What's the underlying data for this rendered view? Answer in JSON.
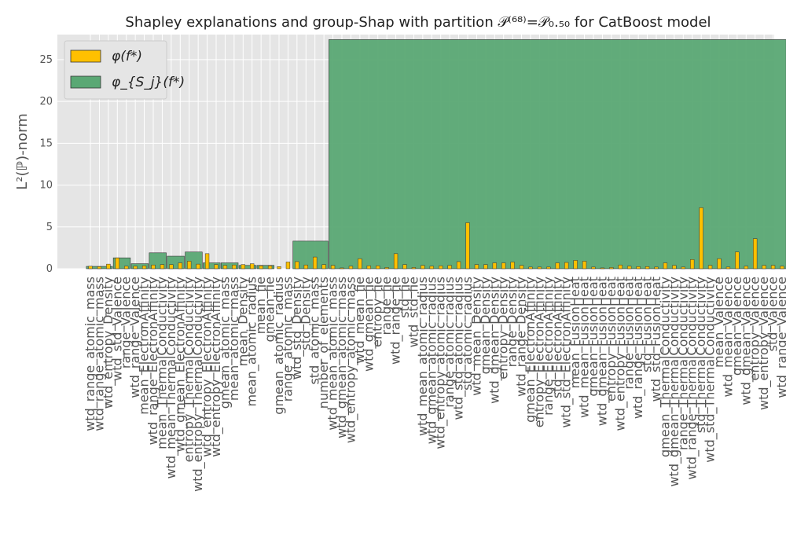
{
  "chart_data": {
    "type": "bar",
    "title": "Shapley explanations and group-Shap with partition 𝒫⁽⁶⁸⁾=𝒫₀.₅₀ for CatBoost model",
    "xlabel": "",
    "ylabel": "L²(ℙ)-norm",
    "ylim": [
      0,
      28
    ],
    "yticks": [
      0,
      5,
      10,
      15,
      20,
      25
    ],
    "grid": true,
    "legend_position": "top-left",
    "colors": {
      "individual": "#ffc000",
      "group": "#5aa874",
      "background": "#e5e5e5",
      "grid": "#ffffff"
    },
    "categories": [
      "wtd_range_atomic_mass",
      "wtd_range_atomic_mass",
      "wtd_entropy_Density",
      "wtd_std_Valence",
      "range_Valence",
      "wtd_range_Valence",
      "mean_ElectronAffinity",
      "wtd_range_ElectronAffinity",
      "mean_ThermalConductivity",
      "wtd_mean_ThermalConductivity",
      "wtd_gmean_ElectronAffinity",
      "entropy_ThermalConductivity",
      "wtd_entropy_ThermalConductivity",
      "wtd_entropy_ElectronAffinity",
      "wtd_entropy_ElectronAffinity",
      "gmean_atomic_mass",
      "mean_atomic_mass",
      "mean_Density",
      "mean_atomic_radius",
      "mean_fie",
      "gmean_fie",
      "gmean_atomic_radius",
      "range_atomic_mass",
      "wtd_std_Density",
      "std_Density",
      "std_atomic_mass",
      "number_of_elements",
      "wtd_mean_atomic_mass",
      "wtd_gmean_atomic_mass",
      "wtd_entropy_atomic_mass",
      "wtd_mean_fie",
      "wtd_gmean_fie",
      "entropy_fie",
      "range_fie",
      "wtd_range_fie",
      "std_fie",
      "wtd_std_fie",
      "wtd_mean_atomic_radius",
      "wtd_gmean_atomic_radius",
      "wtd_entropy_atomic_radius",
      "range_atomic_radius",
      "wtd_std_atomic_radius",
      "std_atomic_radius",
      "wtd_mean_Density",
      "gmean_Density",
      "wtd_gmean_Density",
      "entropy_Density",
      "range_Density",
      "wtd_range_Density",
      "gmean_ElectronAffinity",
      "entropy_ElectronAffinity",
      "range_ElectronAffinity",
      "std_ElectronAffinity",
      "wtd_std_ElectronAffinity",
      "mean_FusionHeat",
      "wtd_mean_FusionHeat",
      "gmean_FusionHeat",
      "wtd_gmean_FusionHeat",
      "entropy_FusionHeat",
      "wtd_entropy_FusionHeat",
      "range_FusionHeat",
      "wtd_range_FusionHeat",
      "std_FusionHeat",
      "wtd_std_FusionHeat",
      "gmean_ThermalConductivity",
      "wtd_gmean_ThermalConductivity",
      "range_ThermalConductivity",
      "wtd_range_ThermalConductivity",
      "std_ThermalConductivity",
      "wtd_std_ThermalConductivity",
      "mean_Valence",
      "wtd_mean_Valence",
      "gmean_Valence",
      "wtd_gmean_Valence",
      "entropy_Valence",
      "wtd_entropy_Valence",
      "std_Valence",
      "wtd_range_Valence"
    ],
    "series": [
      {
        "name": "φ(f*)",
        "values": [
          0.3,
          0.25,
          0.55,
          1.3,
          0.3,
          0.3,
          0.35,
          0.45,
          0.5,
          0.5,
          0.7,
          0.9,
          0.55,
          1.8,
          0.5,
          0.4,
          0.45,
          0.5,
          0.6,
          0.35,
          0.35,
          0.25,
          0.8,
          0.85,
          0.45,
          1.4,
          0.5,
          0.4,
          0.1,
          0.3,
          1.2,
          0.35,
          0.35,
          0.15,
          1.8,
          0.5,
          0.15,
          0.4,
          0.3,
          0.35,
          0.4,
          0.85,
          5.5,
          0.5,
          0.5,
          0.7,
          0.7,
          0.8,
          0.4,
          0.2,
          0.2,
          0.2,
          0.7,
          0.75,
          1.0,
          0.9,
          0.2,
          0.1,
          0.15,
          0.45,
          0.3,
          0.25,
          0.25,
          0.2,
          0.7,
          0.4,
          0.2,
          1.1,
          7.3,
          0.4,
          1.2,
          0.2,
          2.0,
          0.3,
          3.6,
          0.4,
          0.4,
          0.3
        ]
      },
      {
        "name": "φ_{S_j}(f*)",
        "groups": [
          {
            "start": 0,
            "end": 2,
            "value": 0.28
          },
          {
            "start": 3,
            "end": 4,
            "value": 1.3
          },
          {
            "start": 5,
            "end": 6,
            "value": 0.6
          },
          {
            "start": 7,
            "end": 8,
            "value": 1.9
          },
          {
            "start": 9,
            "end": 10,
            "value": 1.5
          },
          {
            "start": 11,
            "end": 12,
            "value": 2.0
          },
          {
            "start": 13,
            "end": 14,
            "value": 0.7
          },
          {
            "start": 15,
            "end": 16,
            "value": 0.7
          },
          {
            "start": 17,
            "end": 18,
            "value": 0.4
          },
          {
            "start": 19,
            "end": 20,
            "value": 0.4
          },
          {
            "start": 21,
            "end": 22,
            "value": 0.0
          },
          {
            "start": 23,
            "end": 26,
            "value": 3.3
          },
          {
            "start": 27,
            "end": 77,
            "value": 27.4
          }
        ]
      }
    ]
  }
}
